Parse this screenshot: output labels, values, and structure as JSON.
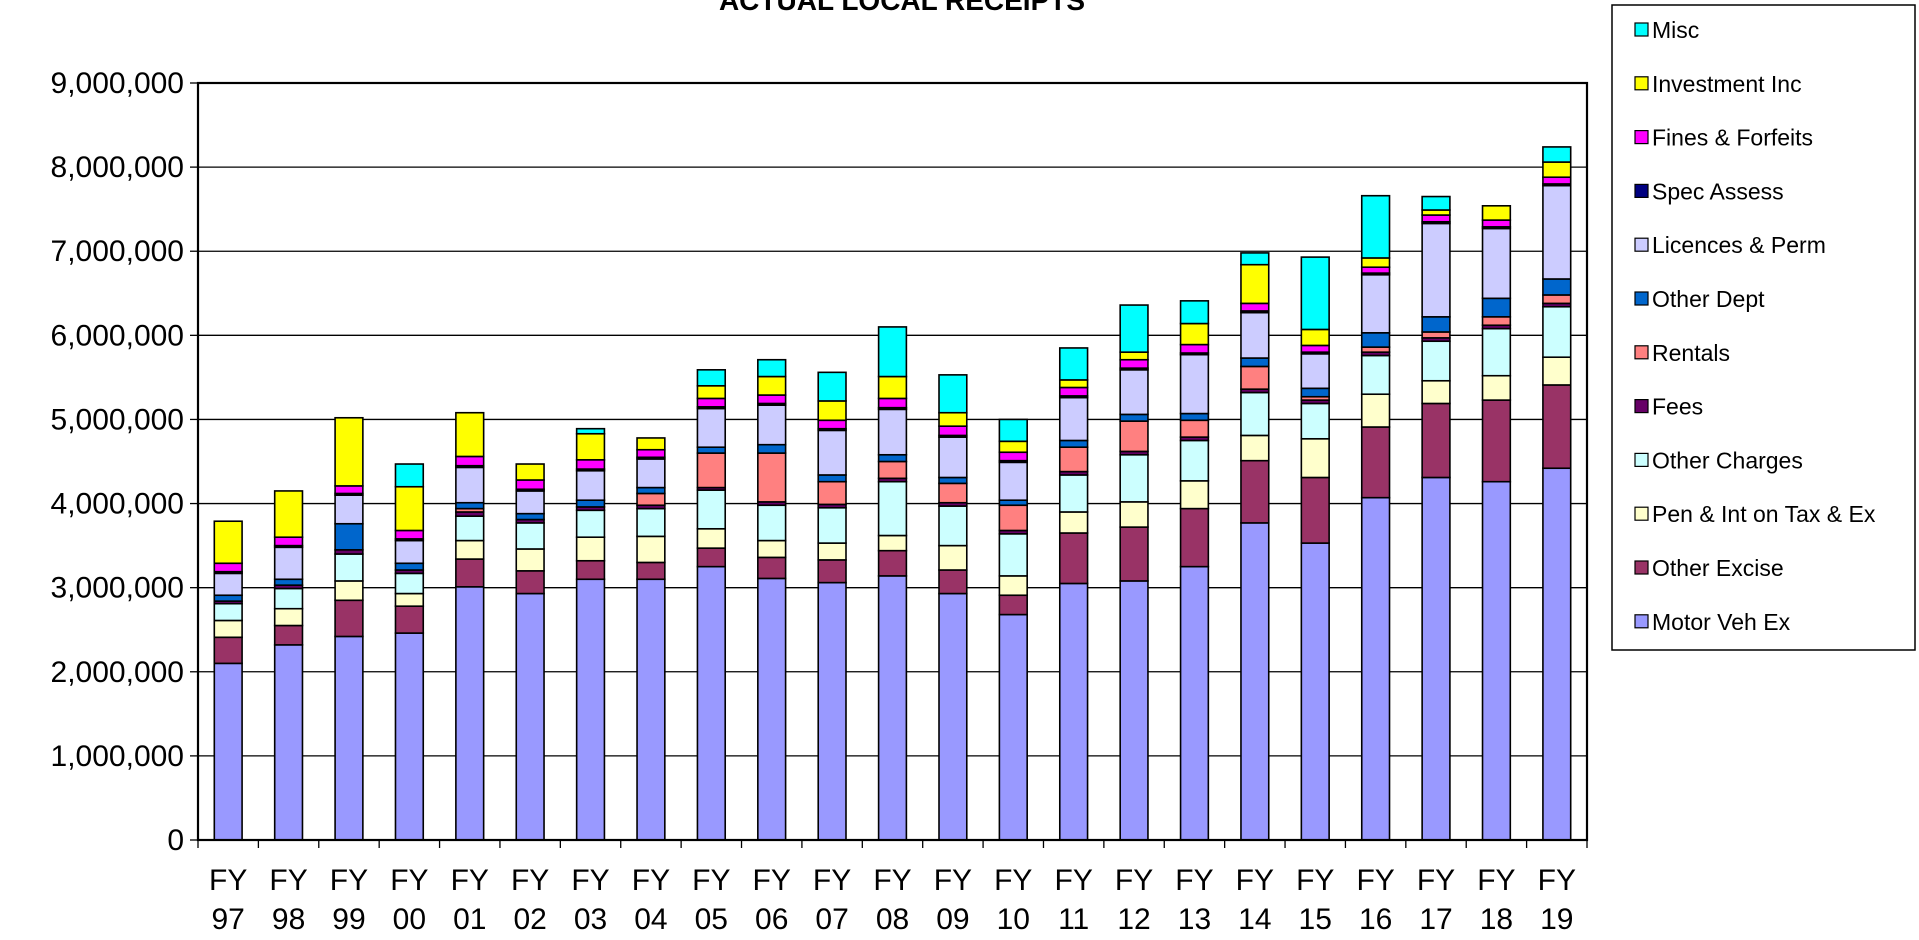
{
  "chart_data": {
    "type": "bar",
    "stacked": true,
    "title": "ACTUAL LOCAL RECEIPTS",
    "xlabel": "",
    "ylabel": "",
    "ylim": [
      0,
      9000000
    ],
    "yticks": [
      0,
      1000000,
      2000000,
      3000000,
      4000000,
      5000000,
      6000000,
      7000000,
      8000000,
      9000000
    ],
    "ytick_labels": [
      "0",
      "1,000,000",
      "2,000,000",
      "3,000,000",
      "4,000,000",
      "5,000,000",
      "6,000,000",
      "7,000,000",
      "8,000,000",
      "9,000,000"
    ],
    "grid": true,
    "legend_position": "right",
    "categories": [
      "FY 97",
      "FY 98",
      "FY 99",
      "FY 00",
      "FY 01",
      "FY 02",
      "FY 03",
      "FY 04",
      "FY 05",
      "FY 06",
      "FY 07",
      "FY 08",
      "FY 09",
      "FY 10",
      "FY 11",
      "FY 12",
      "FY 13",
      "FY 14",
      "FY 15",
      "FY 16",
      "FY 17",
      "FY 18",
      "FY 19"
    ],
    "category_lines": [
      [
        "FY",
        "97"
      ],
      [
        "FY",
        "98"
      ],
      [
        "FY",
        "99"
      ],
      [
        "FY",
        "00"
      ],
      [
        "FY",
        "01"
      ],
      [
        "FY",
        "02"
      ],
      [
        "FY",
        "03"
      ],
      [
        "FY",
        "04"
      ],
      [
        "FY",
        "05"
      ],
      [
        "FY",
        "06"
      ],
      [
        "FY",
        "07"
      ],
      [
        "FY",
        "08"
      ],
      [
        "FY",
        "09"
      ],
      [
        "FY",
        "10"
      ],
      [
        "FY",
        "11"
      ],
      [
        "FY",
        "12"
      ],
      [
        "FY",
        "13"
      ],
      [
        "FY",
        "14"
      ],
      [
        "FY",
        "15"
      ],
      [
        "FY",
        "16"
      ],
      [
        "FY",
        "17"
      ],
      [
        "FY",
        "18"
      ],
      [
        "FY",
        "19"
      ]
    ],
    "series": [
      {
        "name": "Motor Veh Ex",
        "color": "#9999FF",
        "values": [
          2100000,
          2320000,
          2420000,
          2460000,
          3010000,
          2930000,
          3100000,
          3100000,
          3250000,
          3110000,
          3060000,
          3140000,
          2930000,
          2680000,
          3050000,
          3080000,
          3250000,
          3770000,
          3530000,
          4070000,
          4310000,
          4260000,
          4420000
        ]
      },
      {
        "name": "Other Excise",
        "color": "#993366",
        "values": [
          310000,
          230000,
          430000,
          320000,
          330000,
          270000,
          220000,
          200000,
          220000,
          250000,
          270000,
          300000,
          280000,
          230000,
          600000,
          640000,
          690000,
          740000,
          780000,
          840000,
          880000,
          970000,
          990000
        ]
      },
      {
        "name": "Pen & Int on Tax & Ex",
        "color": "#FFFFCC",
        "values": [
          200000,
          200000,
          230000,
          150000,
          220000,
          260000,
          280000,
          310000,
          230000,
          200000,
          200000,
          180000,
          290000,
          230000,
          250000,
          300000,
          330000,
          300000,
          460000,
          390000,
          270000,
          290000,
          330000
        ]
      },
      {
        "name": "Other Charges",
        "color": "#CCFFFF",
        "values": [
          200000,
          240000,
          320000,
          240000,
          290000,
          310000,
          320000,
          330000,
          460000,
          420000,
          420000,
          640000,
          470000,
          500000,
          440000,
          560000,
          480000,
          510000,
          420000,
          460000,
          470000,
          560000,
          600000
        ]
      },
      {
        "name": "Fees",
        "color": "#660066",
        "values": [
          30000,
          40000,
          50000,
          40000,
          50000,
          40000,
          40000,
          40000,
          30000,
          40000,
          40000,
          40000,
          40000,
          40000,
          40000,
          40000,
          40000,
          40000,
          40000,
          40000,
          40000,
          40000,
          40000
        ]
      },
      {
        "name": "Rentals",
        "color": "#FF8080",
        "values": [
          0,
          0,
          0,
          0,
          40000,
          0,
          0,
          140000,
          410000,
          580000,
          270000,
          200000,
          230000,
          300000,
          290000,
          360000,
          200000,
          270000,
          40000,
          60000,
          70000,
          100000,
          100000
        ]
      },
      {
        "name": "Other Dept",
        "color": "#0066CC",
        "values": [
          70000,
          70000,
          310000,
          80000,
          70000,
          70000,
          80000,
          70000,
          70000,
          100000,
          80000,
          80000,
          70000,
          60000,
          80000,
          80000,
          80000,
          100000,
          100000,
          170000,
          180000,
          220000,
          190000
        ]
      },
      {
        "name": "Licences & Perm",
        "color": "#CCCCFF",
        "values": [
          260000,
          380000,
          340000,
          270000,
          420000,
          270000,
          350000,
          340000,
          460000,
          470000,
          530000,
          540000,
          480000,
          450000,
          510000,
          530000,
          700000,
          540000,
          410000,
          690000,
          1110000,
          830000,
          1110000
        ]
      },
      {
        "name": "Spec Assess",
        "color": "#000080",
        "values": [
          20000,
          20000,
          20000,
          20000,
          20000,
          20000,
          20000,
          20000,
          20000,
          20000,
          20000,
          20000,
          20000,
          20000,
          20000,
          20000,
          20000,
          20000,
          20000,
          20000,
          20000,
          20000,
          20000
        ]
      },
      {
        "name": "Fines & Forfeits",
        "color": "#FF00FF",
        "values": [
          100000,
          100000,
          90000,
          100000,
          110000,
          110000,
          110000,
          90000,
          100000,
          100000,
          100000,
          110000,
          110000,
          100000,
          100000,
          100000,
          100000,
          90000,
          80000,
          70000,
          80000,
          80000,
          80000
        ]
      },
      {
        "name": "Investment Inc",
        "color": "#FFFF00",
        "values": [
          500000,
          550000,
          810000,
          520000,
          520000,
          190000,
          310000,
          140000,
          150000,
          220000,
          230000,
          260000,
          160000,
          130000,
          90000,
          90000,
          250000,
          460000,
          190000,
          110000,
          60000,
          170000,
          180000
        ]
      },
      {
        "name": "Misc",
        "color": "#00FFFF",
        "values": [
          0,
          0,
          0,
          270000,
          0,
          0,
          60000,
          0,
          190000,
          200000,
          340000,
          590000,
          450000,
          260000,
          380000,
          560000,
          270000,
          140000,
          860000,
          740000,
          160000,
          0,
          180000
        ]
      }
    ]
  }
}
